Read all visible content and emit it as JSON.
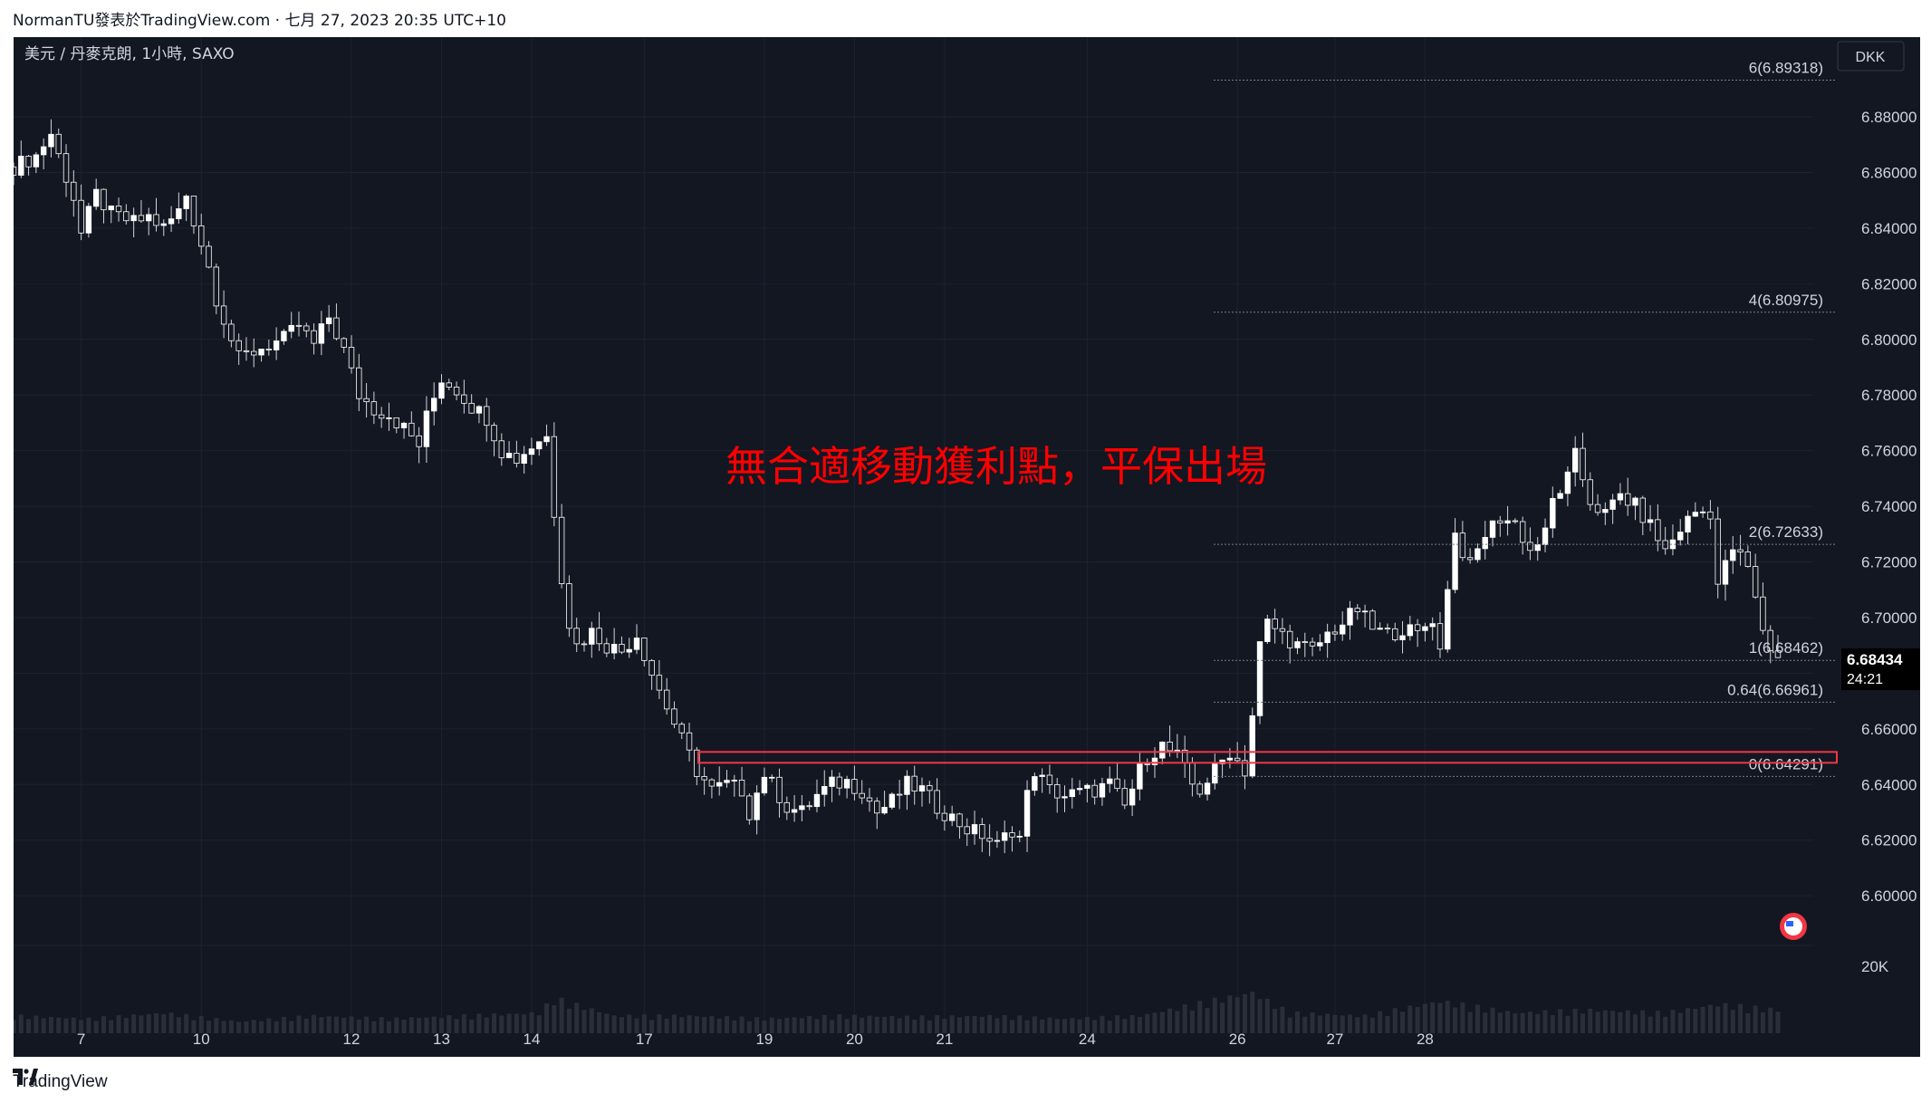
{
  "header": {
    "author_line": "NormanTU發表於TradingView.com",
    "separator": "·",
    "date_line": "七月 27, 2023 20:35 UTC+10"
  },
  "footer": {
    "brand_text": "TradingView",
    "logo_icon": "tradingview-logo-icon"
  },
  "chart_data": {
    "type": "candlestick",
    "symbol_label": "美元 / 丹麥克朗, 1小時, SAXO",
    "currency_label": "DKK",
    "ylim": [
      6.58,
      6.9
    ],
    "y_ticks": [
      "6.88000",
      "6.86000",
      "6.84000",
      "6.82000",
      "6.80000",
      "6.78000",
      "6.76000",
      "6.74000",
      "6.72000",
      "6.70000",
      "6.68000",
      "6.66000",
      "6.64000",
      "6.62000",
      "6.60000"
    ],
    "volume_label": "20K",
    "x_ticks": [
      "7",
      "10",
      "12",
      "13",
      "14",
      "17",
      "19",
      "20",
      "21",
      "24",
      "26",
      "27",
      "28"
    ],
    "last_price": {
      "value": "6.68434",
      "countdown": "24:21",
      "color": "#ffffff"
    },
    "fib_levels": [
      {
        "label": "6(6.89318)",
        "value": 6.89318
      },
      {
        "label": "4(6.80975)",
        "value": 6.80975
      },
      {
        "label": "2(6.72633)",
        "value": 6.72633
      },
      {
        "label": "1(6.68462)",
        "value": 6.68462
      },
      {
        "label": "0.64(6.66961)",
        "value": 6.66961
      },
      {
        "label": "0(6.64291)",
        "value": 6.64291
      }
    ],
    "zone": {
      "top": 6.6517,
      "bottom": 6.6478,
      "color": "#f23645"
    },
    "annotation": {
      "text": "無合適移動獲利點，平保出場",
      "color": "#ff0000"
    },
    "price_path": [
      [
        0,
        6.862
      ],
      [
        3,
        6.866
      ],
      [
        5,
        6.874
      ],
      [
        6,
        6.866
      ],
      [
        8,
        6.851
      ],
      [
        9,
        6.838
      ],
      [
        11,
        6.852
      ],
      [
        13,
        6.845
      ],
      [
        16,
        6.842
      ],
      [
        18,
        6.844
      ],
      [
        20,
        6.84
      ],
      [
        22,
        6.846
      ],
      [
        23,
        6.852
      ],
      [
        24,
        6.843
      ],
      [
        26,
        6.826
      ],
      [
        27,
        6.815
      ],
      [
        29,
        6.8
      ],
      [
        30,
        6.793
      ],
      [
        33,
        6.797
      ],
      [
        36,
        6.8
      ],
      [
        38,
        6.805
      ],
      [
        40,
        6.798
      ],
      [
        42,
        6.808
      ],
      [
        44,
        6.796
      ],
      [
        46,
        6.78
      ],
      [
        48,
        6.775
      ],
      [
        50,
        6.773
      ],
      [
        52,
        6.768
      ],
      [
        54,
        6.762
      ],
      [
        55,
        6.772
      ],
      [
        57,
        6.786
      ],
      [
        59,
        6.782
      ],
      [
        61,
        6.776
      ],
      [
        63,
        6.772
      ],
      [
        65,
        6.76
      ],
      [
        67,
        6.757
      ],
      [
        70,
        6.764
      ],
      [
        71,
        6.765
      ],
      [
        72,
        6.738
      ],
      [
        73,
        6.715
      ],
      [
        74,
        6.698
      ],
      [
        75,
        6.69
      ],
      [
        77,
        6.695
      ],
      [
        79,
        6.69
      ],
      [
        81,
        6.688
      ],
      [
        83,
        6.694
      ],
      [
        85,
        6.68
      ],
      [
        87,
        6.668
      ],
      [
        89,
        6.656
      ],
      [
        91,
        6.645
      ],
      [
        93,
        6.638
      ],
      [
        95,
        6.64
      ],
      [
        97,
        6.638
      ],
      [
        98,
        6.63
      ],
      [
        100,
        6.644
      ],
      [
        101,
        6.64
      ],
      [
        103,
        6.632
      ],
      [
        105,
        6.63
      ],
      [
        107,
        6.636
      ],
      [
        109,
        6.64
      ],
      [
        111,
        6.641
      ],
      [
        113,
        6.638
      ],
      [
        115,
        6.63
      ],
      [
        117,
        6.634
      ],
      [
        119,
        6.64
      ],
      [
        121,
        6.638
      ],
      [
        123,
        6.632
      ],
      [
        125,
        6.628
      ],
      [
        127,
        6.624
      ],
      [
        129,
        6.622
      ],
      [
        131,
        6.618
      ],
      [
        133,
        6.624
      ],
      [
        134,
        6.621
      ],
      [
        135,
        6.636
      ],
      [
        136,
        6.645
      ],
      [
        138,
        6.638
      ],
      [
        140,
        6.636
      ],
      [
        142,
        6.637
      ],
      [
        144,
        6.638
      ],
      [
        146,
        6.64
      ],
      [
        148,
        6.632
      ],
      [
        150,
        6.645
      ],
      [
        151,
        6.65
      ],
      [
        153,
        6.654
      ],
      [
        155,
        6.65
      ],
      [
        157,
        6.64
      ],
      [
        158,
        6.638
      ],
      [
        160,
        6.645
      ],
      [
        162,
        6.652
      ],
      [
        164,
        6.645
      ],
      [
        165,
        6.665
      ],
      [
        166,
        6.69
      ],
      [
        167,
        6.698
      ],
      [
        169,
        6.694
      ],
      [
        171,
        6.69
      ],
      [
        173,
        6.688
      ],
      [
        175,
        6.694
      ],
      [
        177,
        6.698
      ],
      [
        179,
        6.703
      ],
      [
        181,
        6.696
      ],
      [
        183,
        6.694
      ],
      [
        185,
        6.696
      ],
      [
        187,
        6.694
      ],
      [
        189,
        6.7
      ],
      [
        190,
        6.688
      ],
      [
        191,
        6.712
      ],
      [
        192,
        6.73
      ],
      [
        194,
        6.718
      ],
      [
        196,
        6.73
      ],
      [
        198,
        6.736
      ],
      [
        200,
        6.734
      ],
      [
        202,
        6.724
      ],
      [
        204,
        6.73
      ],
      [
        205,
        6.742
      ],
      [
        207,
        6.75
      ],
      [
        208,
        6.758
      ],
      [
        210,
        6.742
      ],
      [
        212,
        6.737
      ],
      [
        214,
        6.744
      ],
      [
        216,
        6.74
      ],
      [
        218,
        6.733
      ],
      [
        220,
        6.724
      ],
      [
        222,
        6.732
      ],
      [
        224,
        6.738
      ],
      [
        226,
        6.738
      ],
      [
        227,
        6.712
      ],
      [
        229,
        6.725
      ],
      [
        231,
        6.718
      ],
      [
        232,
        6.706
      ],
      [
        233,
        6.696
      ],
      [
        234,
        6.689
      ],
      [
        235,
        6.685
      ]
    ],
    "volume_path": [
      [
        0,
        0.3
      ],
      [
        10,
        0.25
      ],
      [
        20,
        0.35
      ],
      [
        30,
        0.2
      ],
      [
        40,
        0.3
      ],
      [
        50,
        0.25
      ],
      [
        60,
        0.3
      ],
      [
        70,
        0.35
      ],
      [
        72,
        0.6
      ],
      [
        80,
        0.3
      ],
      [
        90,
        0.3
      ],
      [
        100,
        0.25
      ],
      [
        110,
        0.3
      ],
      [
        120,
        0.28
      ],
      [
        130,
        0.3
      ],
      [
        140,
        0.25
      ],
      [
        150,
        0.3
      ],
      [
        165,
        0.7
      ],
      [
        170,
        0.35
      ],
      [
        180,
        0.3
      ],
      [
        190,
        0.55
      ],
      [
        200,
        0.35
      ],
      [
        210,
        0.4
      ],
      [
        220,
        0.35
      ],
      [
        227,
        0.5
      ],
      [
        235,
        0.4
      ]
    ],
    "grid": true
  },
  "colors": {
    "background": "#131722",
    "grid": "#1e2230",
    "candle_up": "#ffffff",
    "candle_down": "#ffffff",
    "axis_text": "#d1d4dc",
    "fib_line": "#787b86"
  }
}
